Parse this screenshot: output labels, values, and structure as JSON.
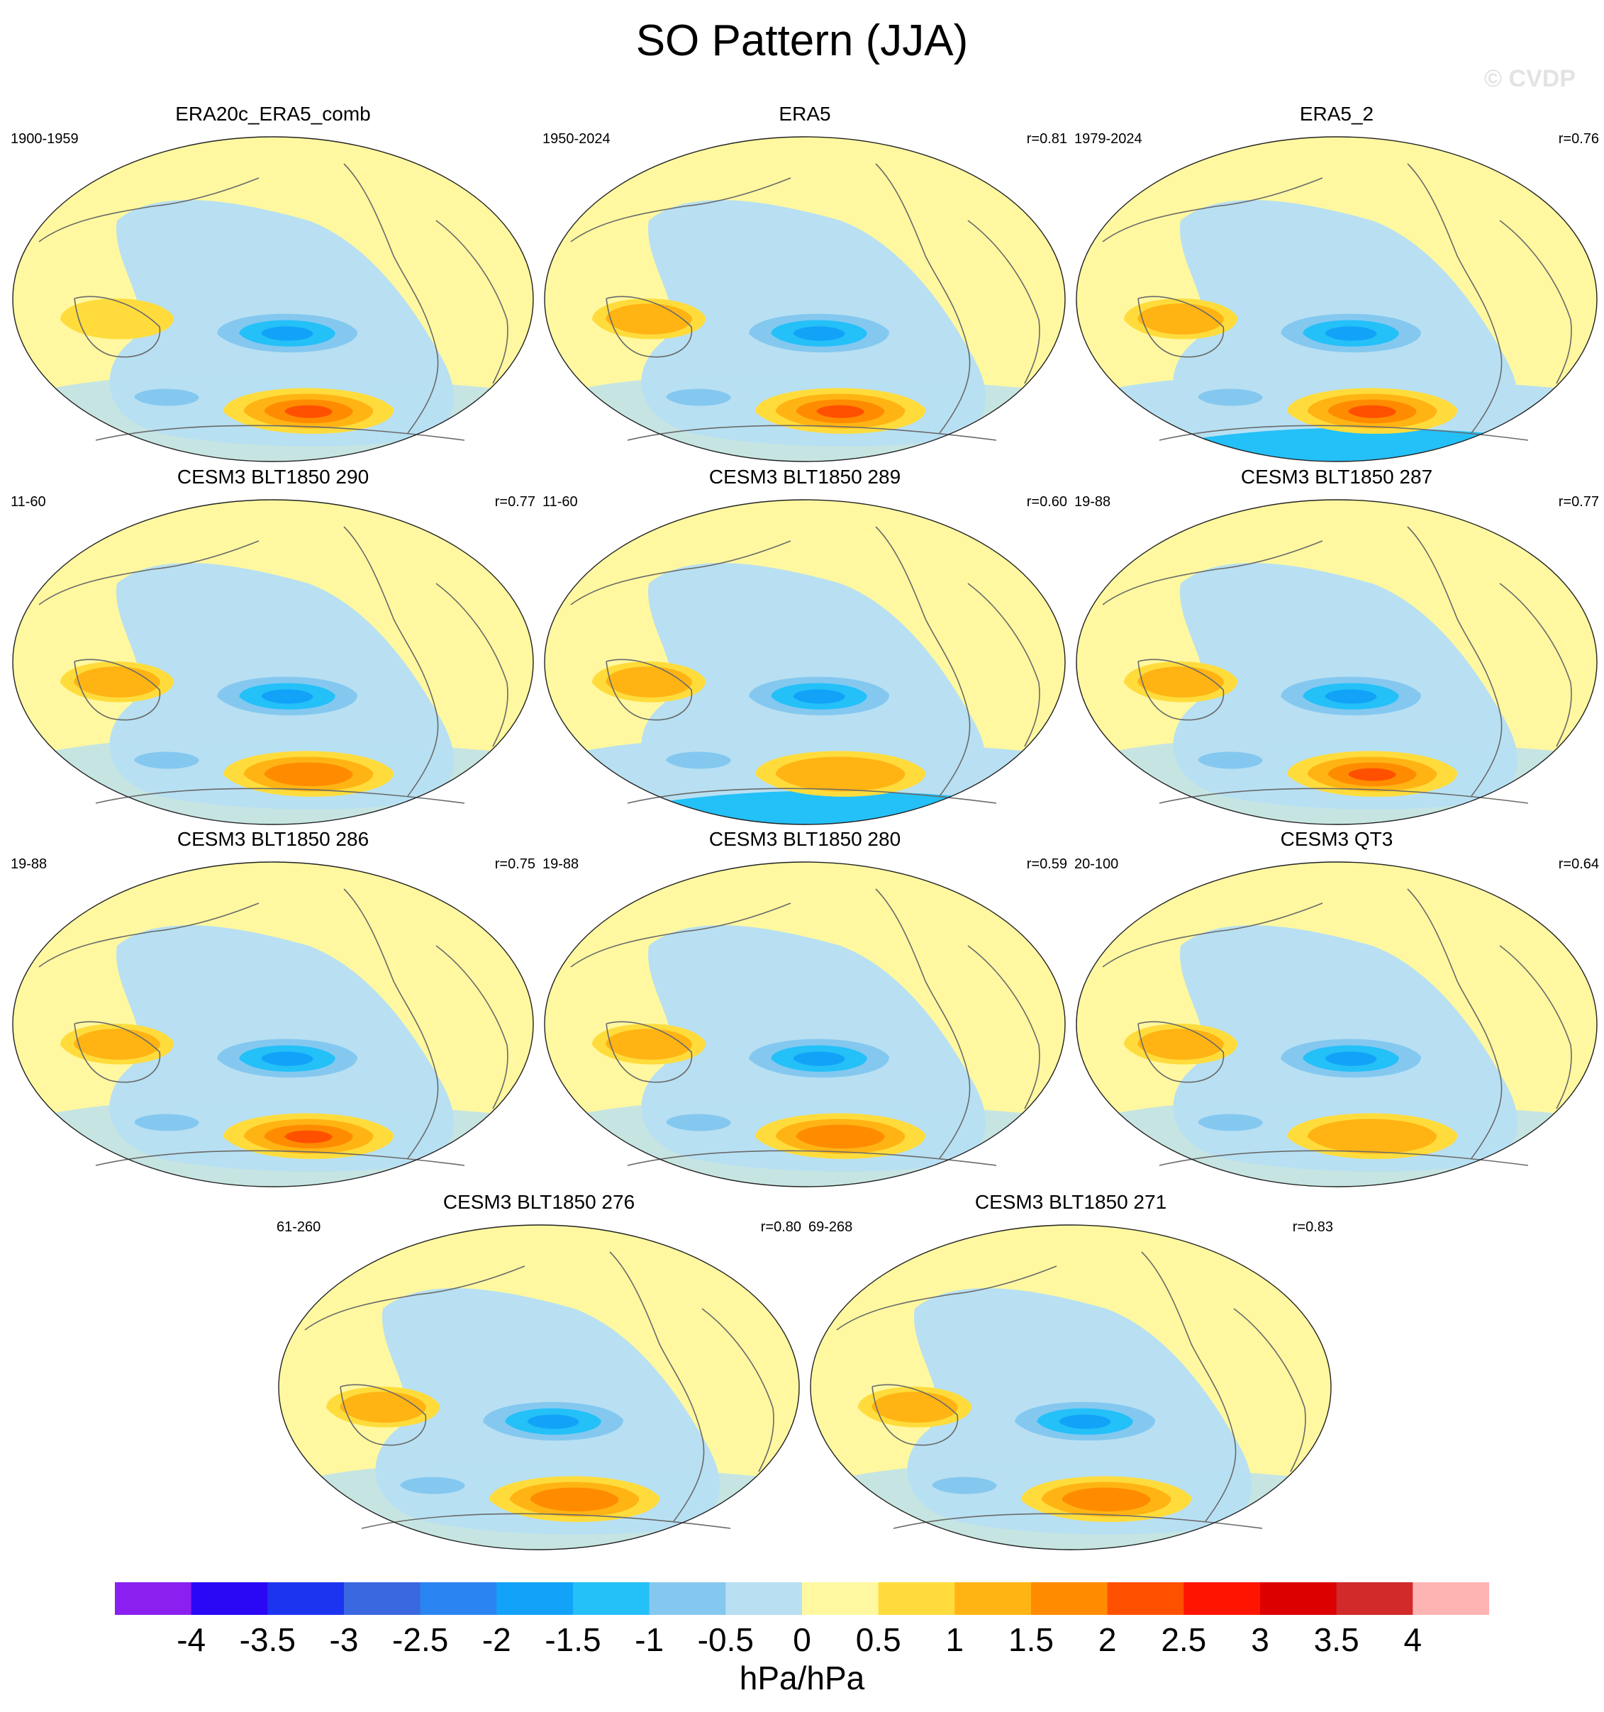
{
  "figure": {
    "title": "SO Pattern (JJA)",
    "watermark": "© CVDP"
  },
  "panels": [
    {
      "title": "ERA20c_ERA5_comb",
      "period": "1900-1959",
      "corr": "",
      "variant": 0
    },
    {
      "title": "ERA5",
      "period": "1950-2024",
      "corr": "r=0.81",
      "variant": 1
    },
    {
      "title": "ERA5_2",
      "period": "1979-2024",
      "corr": "r=0.76",
      "variant": 2
    },
    {
      "title": "CESM3 BLT1850 290",
      "period": "11-60",
      "corr": "r=0.77",
      "variant": 3
    },
    {
      "title": "CESM3 BLT1850 289",
      "period": "11-60",
      "corr": "r=0.60",
      "variant": 4
    },
    {
      "title": "CESM3 BLT1850 287",
      "period": "19-88",
      "corr": "r=0.77",
      "variant": 5
    },
    {
      "title": "CESM3 BLT1850 286",
      "period": "19-88",
      "corr": "r=0.75",
      "variant": 6
    },
    {
      "title": "CESM3 BLT1850 280",
      "period": "19-88",
      "corr": "r=0.59",
      "variant": 7
    },
    {
      "title": "CESM3 QT3",
      "period": "20-100",
      "corr": "r=0.64",
      "variant": 8
    },
    {
      "title": "CESM3 BLT1850 276",
      "period": "61-260",
      "corr": "r=0.80",
      "variant": 9
    },
    {
      "title": "CESM3 BLT1850 271",
      "period": "69-268",
      "corr": "r=0.83",
      "variant": 10
    }
  ],
  "colorbar": {
    "units": "hPa/hPa",
    "levels": [
      "-4",
      "-3.5",
      "-3",
      "-2.5",
      "-2",
      "-1.5",
      "-1",
      "-0.5",
      "0",
      "0.5",
      "1",
      "1.5",
      "2",
      "2.5",
      "3",
      "3.5",
      "4"
    ],
    "colors": [
      "#8a1ff0",
      "#2a08f5",
      "#1c34f0",
      "#3a68e0",
      "#2a84f2",
      "#12a2f8",
      "#24c0f8",
      "#84c8f0",
      "#b8e0f2",
      "#fff8a0",
      "#ffdc3c",
      "#ffb414",
      "#ff8c00",
      "#ff5000",
      "#ff1400",
      "#dc0000",
      "#d22a2a",
      "#ffb4b4"
    ]
  }
}
